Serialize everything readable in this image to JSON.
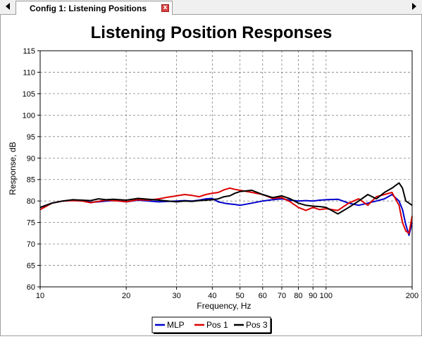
{
  "window": {
    "tab_title": "Config 1: Listening Positions",
    "close_glyph": "x"
  },
  "chart_data": {
    "type": "line",
    "title": "Listening Position Responses",
    "xlabel": "Frequency, Hz",
    "ylabel": "Response, dB",
    "x_scale": "log",
    "xlim": [
      10,
      200
    ],
    "ylim": [
      60,
      115
    ],
    "x_ticks": [
      10,
      20,
      30,
      40,
      50,
      60,
      70,
      80,
      90,
      100,
      200
    ],
    "y_ticks": [
      60,
      65,
      70,
      75,
      80,
      85,
      90,
      95,
      100,
      105,
      110,
      115
    ],
    "grid": true,
    "legend_position": "bottom-center",
    "series": [
      {
        "name": "MLP",
        "color": "#0000cc",
        "x": [
          10,
          11,
          12,
          13,
          14,
          15,
          16,
          17,
          18,
          19,
          20,
          22,
          24,
          26,
          28,
          30,
          32,
          34,
          36,
          38,
          40,
          42,
          44,
          46,
          48,
          50,
          55,
          60,
          65,
          70,
          75,
          80,
          85,
          90,
          95,
          100,
          110,
          120,
          130,
          140,
          150,
          160,
          170,
          180,
          185,
          190,
          195,
          200
        ],
        "y": [
          78.5,
          79.5,
          80.0,
          80.2,
          80.1,
          79.7,
          79.8,
          80.0,
          80.1,
          80.0,
          79.8,
          80.2,
          80.0,
          79.8,
          79.9,
          80.0,
          80.1,
          80.0,
          80.2,
          80.5,
          80.6,
          79.8,
          79.5,
          79.3,
          79.2,
          79.0,
          79.5,
          80.0,
          80.3,
          80.5,
          80.2,
          80.0,
          80.1,
          80.0,
          80.2,
          80.3,
          80.4,
          79.5,
          79.0,
          79.5,
          80.0,
          80.5,
          81.5,
          80.0,
          78.0,
          74.5,
          72.0,
          75.0
        ]
      },
      {
        "name": "Pos 1",
        "color": "#dd0000",
        "x": [
          10,
          11,
          12,
          13,
          14,
          15,
          16,
          17,
          18,
          19,
          20,
          22,
          24,
          26,
          28,
          30,
          32,
          34,
          36,
          38,
          40,
          42,
          44,
          46,
          48,
          50,
          55,
          60,
          65,
          70,
          75,
          80,
          85,
          90,
          95,
          100,
          110,
          120,
          130,
          140,
          150,
          160,
          170,
          180,
          185,
          190,
          195,
          200
        ],
        "y": [
          78.0,
          79.5,
          80.0,
          80.1,
          80.0,
          79.6,
          79.9,
          80.2,
          80.1,
          80.0,
          79.8,
          80.3,
          80.2,
          80.5,
          80.9,
          81.2,
          81.5,
          81.3,
          81.0,
          81.5,
          81.8,
          82.0,
          82.6,
          83.0,
          82.7,
          82.5,
          82.0,
          81.5,
          80.6,
          80.8,
          79.8,
          78.5,
          77.8,
          78.5,
          78.0,
          78.2,
          77.8,
          79.5,
          80.5,
          79.0,
          81.0,
          81.5,
          82.0,
          79.0,
          75.0,
          73.0,
          72.5,
          76.5
        ]
      },
      {
        "name": "Pos 3",
        "color": "#000000",
        "x": [
          10,
          11,
          12,
          13,
          14,
          15,
          16,
          17,
          18,
          19,
          20,
          22,
          24,
          26,
          28,
          30,
          32,
          34,
          36,
          38,
          40,
          42,
          44,
          46,
          48,
          50,
          55,
          60,
          65,
          70,
          75,
          80,
          85,
          90,
          95,
          100,
          110,
          120,
          130,
          140,
          150,
          160,
          170,
          180,
          185,
          190,
          195,
          200
        ],
        "y": [
          78.5,
          79.5,
          80.0,
          80.3,
          80.2,
          80.1,
          80.5,
          80.3,
          80.4,
          80.3,
          80.2,
          80.6,
          80.4,
          80.2,
          80.0,
          79.8,
          80.0,
          79.9,
          80.1,
          80.2,
          80.3,
          80.5,
          81.0,
          81.2,
          81.8,
          82.2,
          82.5,
          81.5,
          80.8,
          81.2,
          80.5,
          79.5,
          79.0,
          78.8,
          78.7,
          78.5,
          77.0,
          78.5,
          80.0,
          81.5,
          80.5,
          82.0,
          83.0,
          84.2,
          83.0,
          80.0,
          79.5,
          79.0
        ]
      }
    ]
  }
}
